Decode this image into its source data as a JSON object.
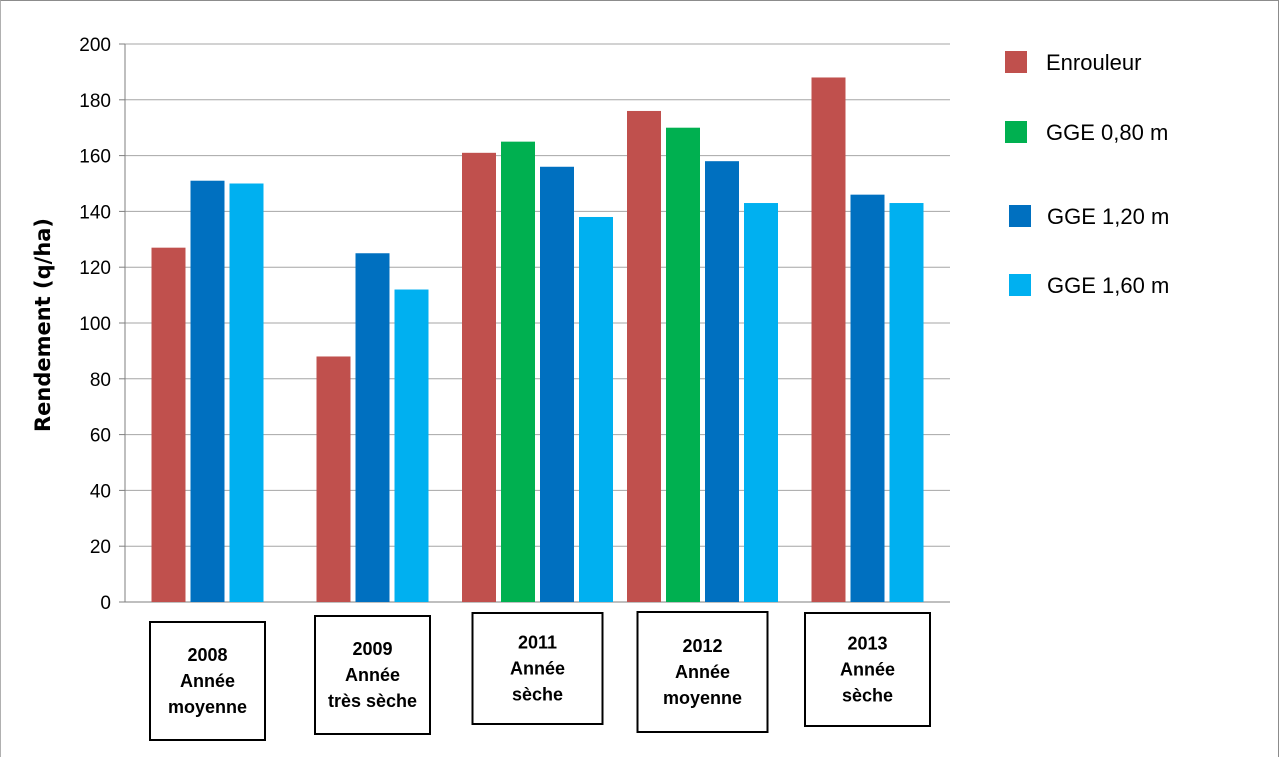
{
  "chart_data": {
    "type": "bar",
    "title": "",
    "xlabel": "",
    "ylabel": "Rendement  (q/ha)",
    "ylim": [
      0,
      200
    ],
    "yticks": [
      0,
      20,
      40,
      60,
      80,
      100,
      120,
      140,
      160,
      180,
      200
    ],
    "grid": true,
    "legend_position": "right",
    "categories": [
      [
        "2008",
        "Année",
        "moyenne"
      ],
      [
        "2009",
        "Année",
        "très sèche"
      ],
      [
        "2011",
        "Année",
        "sèche"
      ],
      [
        "2012",
        "Année",
        "moyenne"
      ],
      [
        "2013",
        "Année",
        "sèche"
      ]
    ],
    "series": [
      {
        "name": "Enrouleur",
        "color": "#c0504d",
        "values": [
          127,
          88,
          161,
          176,
          188
        ]
      },
      {
        "name": "GGE 0,80 m",
        "color": "#00b050",
        "values": [
          null,
          null,
          165,
          170,
          null
        ]
      },
      {
        "name": "GGE 1,20 m",
        "color": "#0070c0",
        "values": [
          151,
          125,
          156,
          158,
          146
        ]
      },
      {
        "name": "GGE 1,60 m",
        "color": "#00b0f0",
        "values": [
          150,
          112,
          138,
          143,
          143
        ]
      }
    ]
  }
}
